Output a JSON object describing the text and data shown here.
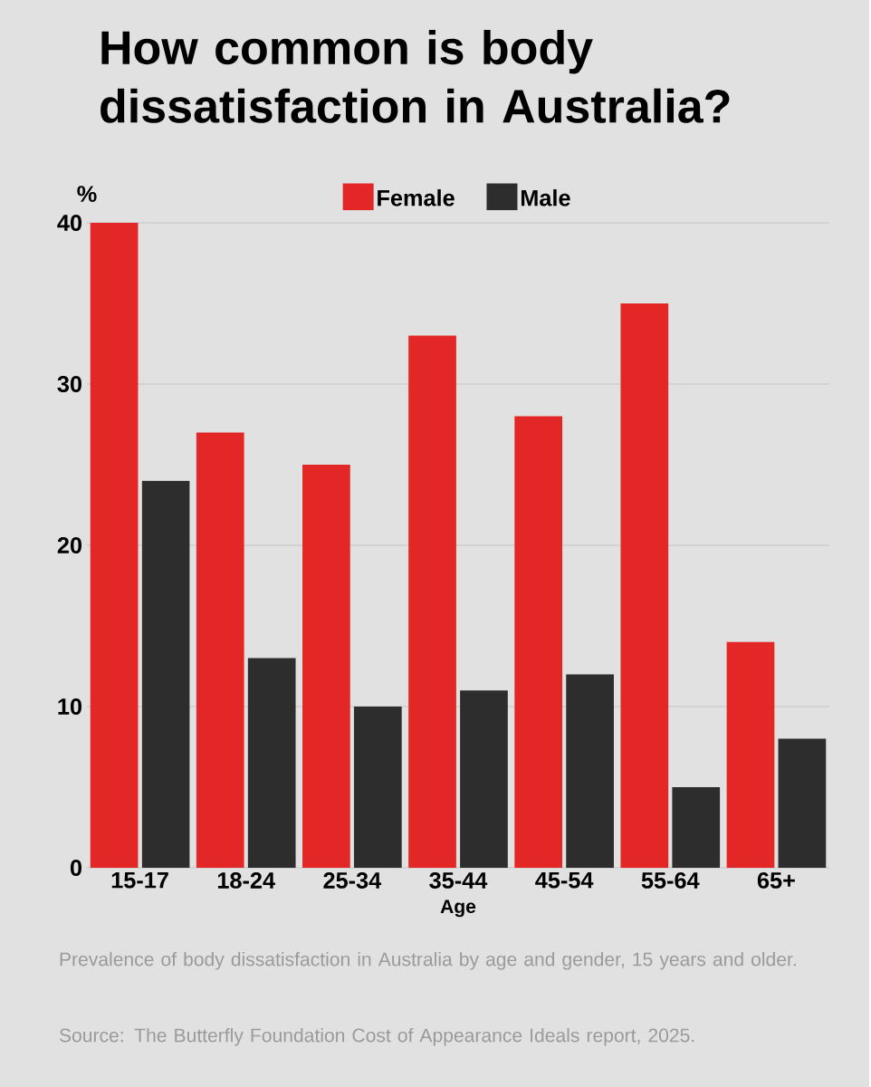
{
  "chart_data": {
    "type": "bar",
    "title": "How common is body dissatisfaction in Australia?",
    "categories": [
      "15-17",
      "18-24",
      "25-34",
      "35-44",
      "45-54",
      "55-64",
      "65+"
    ],
    "series": [
      {
        "name": "Female",
        "color": "#e32726",
        "values": [
          40,
          27,
          25,
          33,
          28,
          35,
          14
        ]
      },
      {
        "name": "Male",
        "color": "#2d2d2d",
        "values": [
          24,
          13,
          10,
          11,
          12,
          5,
          8
        ]
      }
    ],
    "ylabel": "%",
    "xlabel": "Age",
    "ylim": [
      0,
      40
    ],
    "yticks": [
      0,
      10,
      20,
      30,
      40
    ],
    "grid": "y",
    "legend": "top",
    "annotations": [
      "Prevalence of body dissatisfaction in Australia by age and gender, 15 years and older.",
      "Source: The Butterfly Foundation Cost of Appearance Ideals report, 2025."
    ]
  }
}
